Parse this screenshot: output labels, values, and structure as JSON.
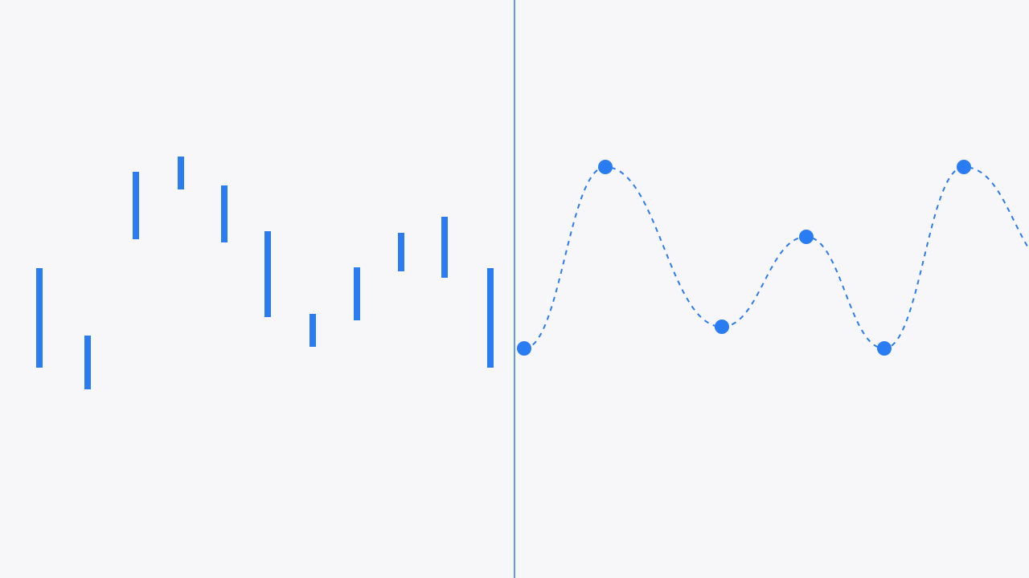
{
  "chart_data": [
    {
      "type": "bar",
      "subtype": "floating-range",
      "title": "",
      "xlabel": "",
      "ylabel": "",
      "ylim": [
        0,
        720
      ],
      "axes_visible": false,
      "grid": false,
      "legend": "none",
      "series": [
        {
          "color": "#2a7cf2",
          "ranges": [
            [
              262,
              386
            ],
            [
              235,
              302
            ],
            [
              422,
              506
            ],
            [
              484,
              525
            ],
            [
              418,
              489
            ],
            [
              325,
              432
            ],
            [
              288,
              329
            ],
            [
              321,
              387
            ],
            [
              382,
              430
            ],
            [
              374,
              450
            ],
            [
              262,
              386
            ]
          ]
        }
      ]
    },
    {
      "type": "line",
      "title": "",
      "xlabel": "",
      "ylabel": "",
      "xlim": [
        640,
        1280
      ],
      "ylim": [
        0,
        720
      ],
      "axes_visible": false,
      "grid": false,
      "legend": "none",
      "series": [
        {
          "color": "#2a7cf2",
          "line_style": "dashed",
          "smooth": true,
          "points": [
            {
              "x": 652,
              "y": 286
            },
            {
              "x": 753,
              "y": 512
            },
            {
              "x": 898,
              "y": 313
            },
            {
              "x": 1003,
              "y": 425
            },
            {
              "x": 1100,
              "y": 286
            },
            {
              "x": 1199,
              "y": 512
            }
          ],
          "continues_to": {
            "x": 1280,
            "y": 410
          }
        }
      ]
    }
  ],
  "divider_color": "#2a7cf2"
}
